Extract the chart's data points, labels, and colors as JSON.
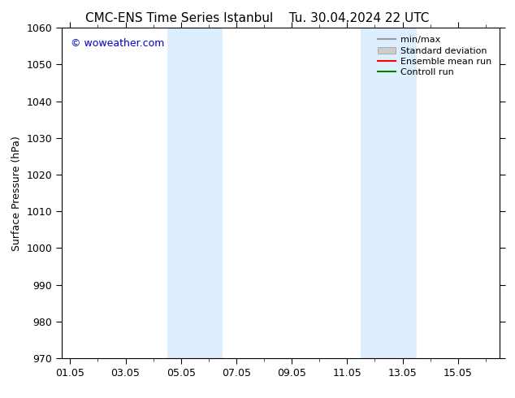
{
  "title": "CMC-ENS Time Series Istanbul",
  "title2": "Tu. 30.04.2024 22 UTC",
  "ylabel": "Surface Pressure (hPa)",
  "ylim": [
    970,
    1060
  ],
  "yticks": [
    970,
    980,
    990,
    1000,
    1010,
    1020,
    1030,
    1040,
    1050,
    1060
  ],
  "xtick_labels": [
    "01.05",
    "03.05",
    "05.05",
    "07.05",
    "09.05",
    "11.05",
    "13.05",
    "15.05"
  ],
  "xtick_positions": [
    0,
    2,
    4,
    6,
    8,
    10,
    12,
    14
  ],
  "xlim": [
    -0.3,
    15.5
  ],
  "shaded_regions": [
    {
      "start": 3.3,
      "end": 4.7
    },
    {
      "start": 5.3,
      "end": 5.7
    },
    {
      "start": 10.3,
      "end": 11.0
    },
    {
      "start": 11.7,
      "end": 12.7
    }
  ],
  "shade_color": "#ddeeff",
  "watermark": "© woweather.com",
  "watermark_color": "#0000cc",
  "legend_entries": [
    {
      "label": "min/max",
      "color": "#999999",
      "lw": 1.5,
      "type": "line"
    },
    {
      "label": "Standard deviation",
      "color": "#cccccc",
      "lw": 8,
      "type": "patch"
    },
    {
      "label": "Ensemble mean run",
      "color": "#ff0000",
      "lw": 1.5,
      "type": "line"
    },
    {
      "label": "Controll run",
      "color": "#008000",
      "lw": 1.5,
      "type": "line"
    }
  ],
  "bg_color": "#ffffff",
  "font_size": 9,
  "title_font_size": 11
}
